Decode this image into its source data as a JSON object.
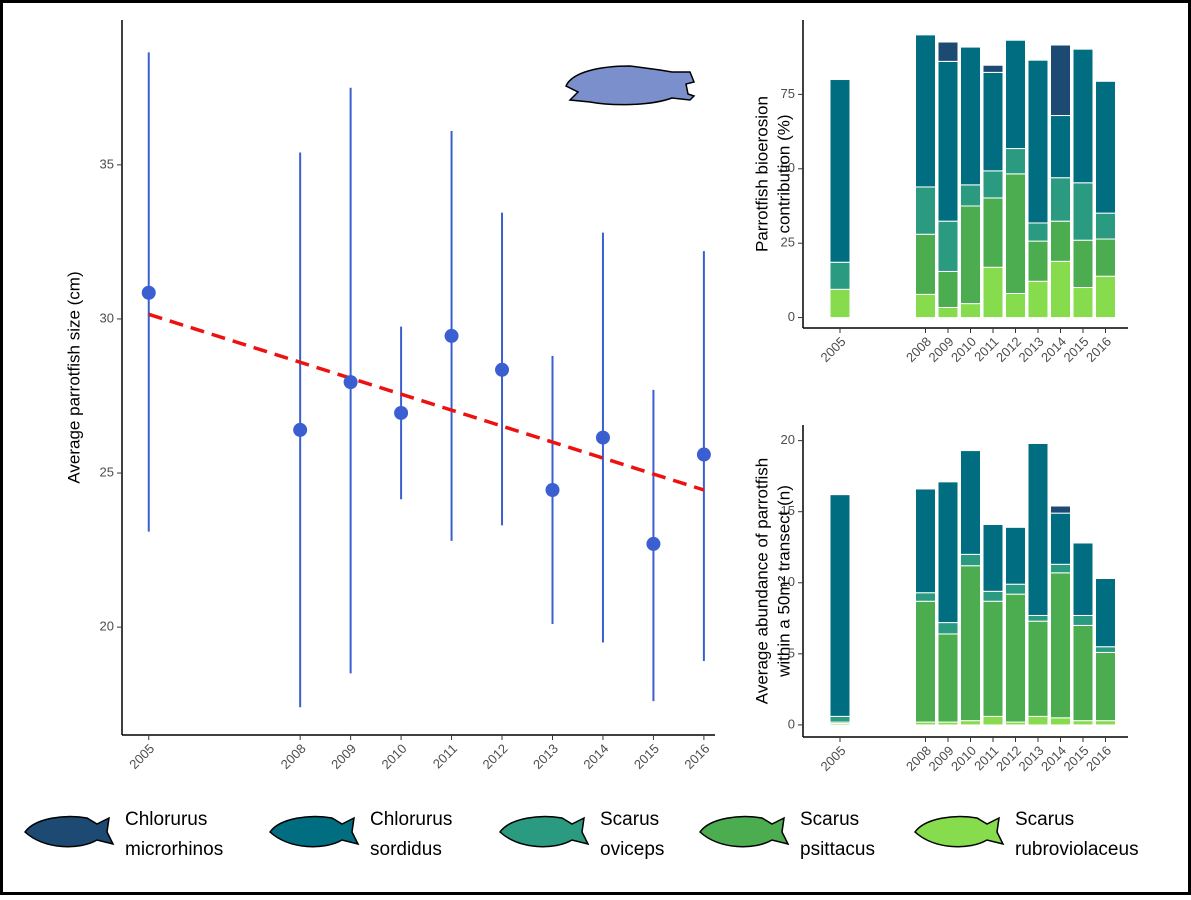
{
  "chart_data": [
    {
      "type": "pointrange",
      "y_label": "Average parrotfish size (cm)",
      "x": [
        2005,
        2008,
        2009,
        2010,
        2011,
        2012,
        2013,
        2014,
        2015,
        2016
      ],
      "values": [
        30.85,
        26.4,
        27.95,
        26.95,
        29.45,
        28.35,
        24.45,
        26.15,
        22.7,
        25.6
      ],
      "lower": [
        23.1,
        17.4,
        18.5,
        24.15,
        22.8,
        23.3,
        20.1,
        19.5,
        17.6,
        18.9
      ],
      "upper": [
        38.65,
        35.4,
        37.5,
        29.75,
        36.1,
        33.45,
        28.8,
        32.8,
        27.7,
        32.2
      ],
      "color": "#3b5fd0",
      "trend": {
        "x": [
          2005,
          2016
        ],
        "values": [
          30.15,
          24.45
        ],
        "color": "#ee1111"
      },
      "xlim": [
        2004.47,
        2016.22
      ],
      "xticks": [
        2005,
        2008,
        2009,
        2010,
        2011,
        2012,
        2013,
        2014,
        2015,
        2016
      ],
      "ylim": [
        16.5,
        39.7
      ],
      "yticks": [
        20,
        25,
        30,
        35
      ]
    },
    {
      "type": "stacked-bar",
      "y_label": [
        "Parrotfish bioerosion",
        "contribution (%)"
      ],
      "categories": [
        "2005",
        "2008",
        "2009",
        "2010",
        "2011",
        "2012",
        "2013",
        "2014",
        "2015",
        "2016"
      ],
      "series": [
        {
          "name": "Chlorurus microrhinos",
          "color": "#1d4a72",
          "values": [
            0,
            0,
            6.5,
            0,
            2.4,
            0,
            0,
            23.7,
            0,
            0
          ]
        },
        {
          "name": "Chlorurus sordidus",
          "color": "#006e80",
          "values": [
            61.4,
            51.1,
            53.7,
            46.3,
            33.1,
            36.4,
            54.7,
            20.9,
            44.9,
            44.3
          ]
        },
        {
          "name": "Scarus oviceps",
          "color": "#2a9a80",
          "values": [
            9.1,
            15.9,
            16.9,
            7.1,
            9.1,
            8.5,
            6.1,
            14.6,
            19.3,
            8.7
          ]
        },
        {
          "name": "Scarus psittacus",
          "color": "#4cac50",
          "values": [
            0,
            20.2,
            12.1,
            32.8,
            23.3,
            40.2,
            13.5,
            13.5,
            15.9,
            12.5
          ]
        },
        {
          "name": "Scarus rubroviolaceus",
          "color": "#86dc4c",
          "values": [
            9.5,
            7.8,
            3.4,
            4.7,
            16.9,
            8.1,
            12.2,
            18.9,
            10.1,
            13.9
          ]
        }
      ],
      "ylim": [
        -3.5,
        100
      ],
      "yticks": [
        0,
        25,
        50,
        75
      ]
    },
    {
      "type": "stacked-bar",
      "y_label": [
        "Average abundance of parrotfish",
        "within a 50m² transect (n)"
      ],
      "categories": [
        "2005",
        "2008",
        "2009",
        "2010",
        "2011",
        "2012",
        "2013",
        "2014",
        "2015",
        "2016"
      ],
      "series": [
        {
          "color": "#1d4a72",
          "values": [
            0,
            0,
            0,
            0,
            0,
            0,
            0,
            0.5,
            0,
            0
          ]
        },
        {
          "color": "#006e80",
          "values": [
            15.6,
            7.3,
            9.9,
            7.3,
            4.7,
            4.0,
            12.1,
            3.6,
            5.1,
            4.8
          ]
        },
        {
          "color": "#2a9a80",
          "values": [
            0.4,
            0.6,
            0.8,
            0.8,
            0.7,
            0.7,
            0.4,
            0.6,
            0.7,
            0.4
          ]
        },
        {
          "color": "#4cac50",
          "values": [
            0.1,
            8.5,
            6.2,
            10.9,
            8.1,
            9.0,
            6.7,
            10.2,
            6.7,
            4.8
          ]
        },
        {
          "color": "#86dc4c",
          "values": [
            0.1,
            0.2,
            0.2,
            0.3,
            0.6,
            0.2,
            0.6,
            0.5,
            0.3,
            0.3
          ]
        }
      ],
      "ylim": [
        -0.85,
        21.1
      ],
      "yticks": [
        0,
        5,
        10,
        15,
        20
      ]
    }
  ]
}
